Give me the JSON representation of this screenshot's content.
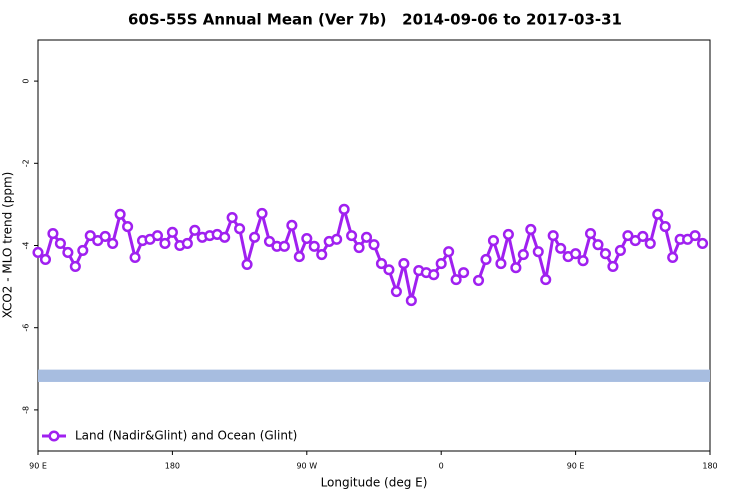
{
  "chart_data": {
    "type": "line",
    "title": "60S-55S Annual Mean (Ver 7b)   2014-09-06 to 2017-03-31",
    "x_label": "Longitude (deg E)",
    "y_label": "XCO2 - MLO trend (ppm)",
    "xlim": [
      90,
      540
    ],
    "ylim": [
      -9,
      1
    ],
    "xticks": [
      {
        "value": 90,
        "label": "90 E"
      },
      180,
      {
        "value": 270,
        "label": "90 W"
      },
      {
        "value": 360,
        "label": "0"
      },
      {
        "value": 450,
        "label": "90 E"
      },
      {
        "value": 540,
        "label": "180"
      }
    ],
    "yticks": [
      0,
      -2,
      -4,
      -6,
      -8
    ],
    "legend": "bottom-left",
    "hband": {
      "ymin": -7.32,
      "ymax": -7.02,
      "color": "#a7bde0"
    },
    "x": [
      90,
      95,
      100,
      105,
      110,
      115,
      120,
      125,
      130,
      135,
      140,
      145,
      150,
      155,
      160,
      165,
      170,
      175,
      180,
      185,
      190,
      195,
      200,
      205,
      210,
      215,
      220,
      225,
      230,
      235,
      240,
      245,
      250,
      255,
      260,
      265,
      270,
      275,
      280,
      285,
      290,
      295,
      300,
      305,
      310,
      315,
      320,
      325,
      330,
      335,
      340,
      345,
      350,
      355,
      360,
      365,
      370,
      375,
      380,
      385,
      390,
      395,
      400,
      405,
      410,
      415,
      420,
      425,
      430,
      435,
      440,
      445,
      450,
      455,
      460,
      465,
      470,
      475,
      480,
      485,
      490,
      495,
      500,
      505,
      510,
      515,
      520,
      525,
      530,
      535
    ],
    "series": [
      {
        "name": "Land (Nadir&Glint) and Ocean (Glint)",
        "color": "#a020f0",
        "values": [
          -4.17,
          -4.34,
          -3.71,
          -3.95,
          -4.17,
          -4.51,
          -4.12,
          -3.76,
          -3.88,
          -3.78,
          -3.95,
          -3.24,
          -3.54,
          -4.29,
          -3.88,
          -3.85,
          -3.76,
          -3.95,
          -3.68,
          -4.0,
          -3.95,
          -3.63,
          -3.8,
          -3.76,
          -3.73,
          -3.8,
          -3.32,
          -3.59,
          -4.46,
          -3.8,
          -3.22,
          -3.9,
          -4.02,
          -4.02,
          -3.51,
          -4.27,
          -3.83,
          -4.02,
          -4.22,
          -3.9,
          -3.85,
          -3.12,
          -3.76,
          -4.05,
          -3.8,
          -3.98,
          -4.44,
          -4.59,
          -5.12,
          -4.44,
          -5.34,
          -4.61,
          -4.66,
          -4.71,
          -4.44,
          -4.15,
          -4.83,
          -4.66,
          null,
          -4.85,
          -4.34,
          -3.88,
          -4.44,
          -3.73,
          -4.54,
          -4.22,
          -3.61,
          -4.15,
          -4.83,
          -3.76,
          -4.07,
          -4.27,
          -4.2,
          -4.37,
          -3.71,
          -3.98,
          -4.2,
          -4.51,
          -4.12,
          -3.76,
          -3.88,
          -3.78,
          -3.95,
          -3.24,
          -3.54,
          -4.29,
          -3.85,
          -3.85,
          -3.76,
          -3.95
        ]
      }
    ]
  }
}
